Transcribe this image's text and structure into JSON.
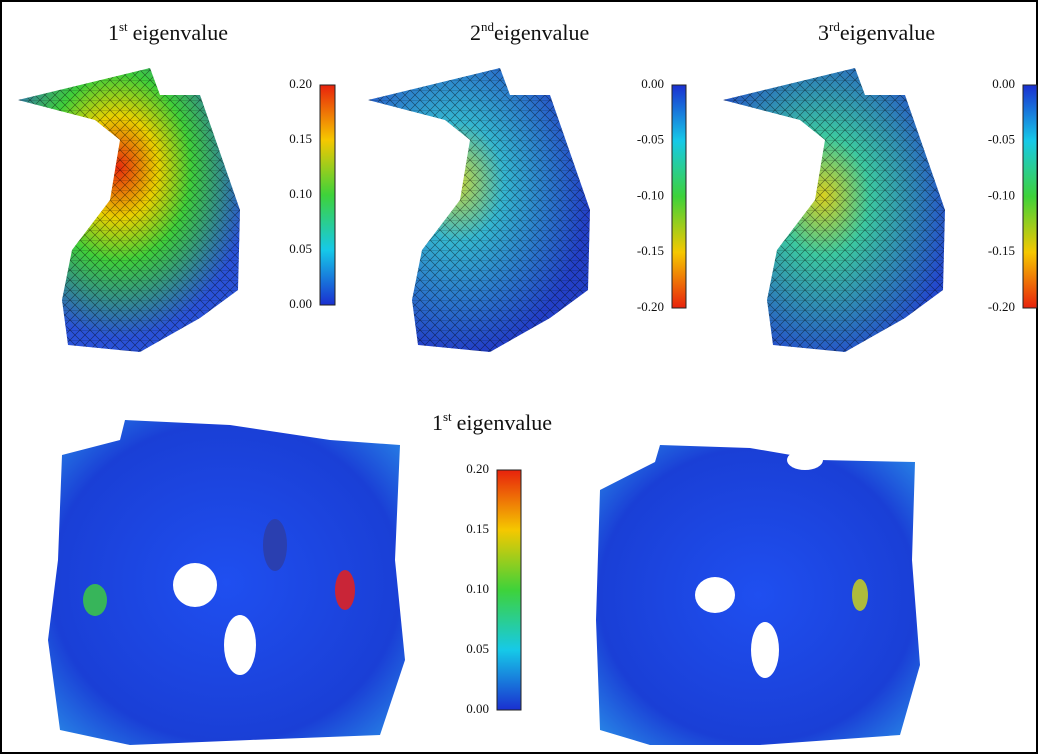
{
  "top_row": {
    "panels": [
      {
        "title": {
          "ordinal": "1",
          "suffix": "st",
          "text": "eigenvalue"
        },
        "colorbar": {
          "ticks": [
            "0.20",
            "0.15",
            "0.10",
            "0.05",
            "0.00"
          ]
        }
      },
      {
        "title": {
          "ordinal": "2",
          "suffix": "nd",
          "text": "eigenvalue"
        },
        "colorbar": {
          "ticks": [
            "0.00",
            "-0.05",
            "-0.10",
            "-0.15",
            "-0.20"
          ]
        }
      },
      {
        "title": {
          "ordinal": "3",
          "suffix": "rd",
          "text": "eigenvalue"
        },
        "colorbar": {
          "ticks": [
            "0.00",
            "-0.05",
            "-0.10",
            "-0.15",
            "-0.20"
          ]
        }
      }
    ]
  },
  "bottom_row": {
    "title": {
      "ordinal": "1",
      "suffix": "st",
      "text": "eigenvalue"
    },
    "colorbar": {
      "ticks": [
        "0.20",
        "0.15",
        "0.10",
        "0.05",
        "0.00"
      ]
    }
  }
}
